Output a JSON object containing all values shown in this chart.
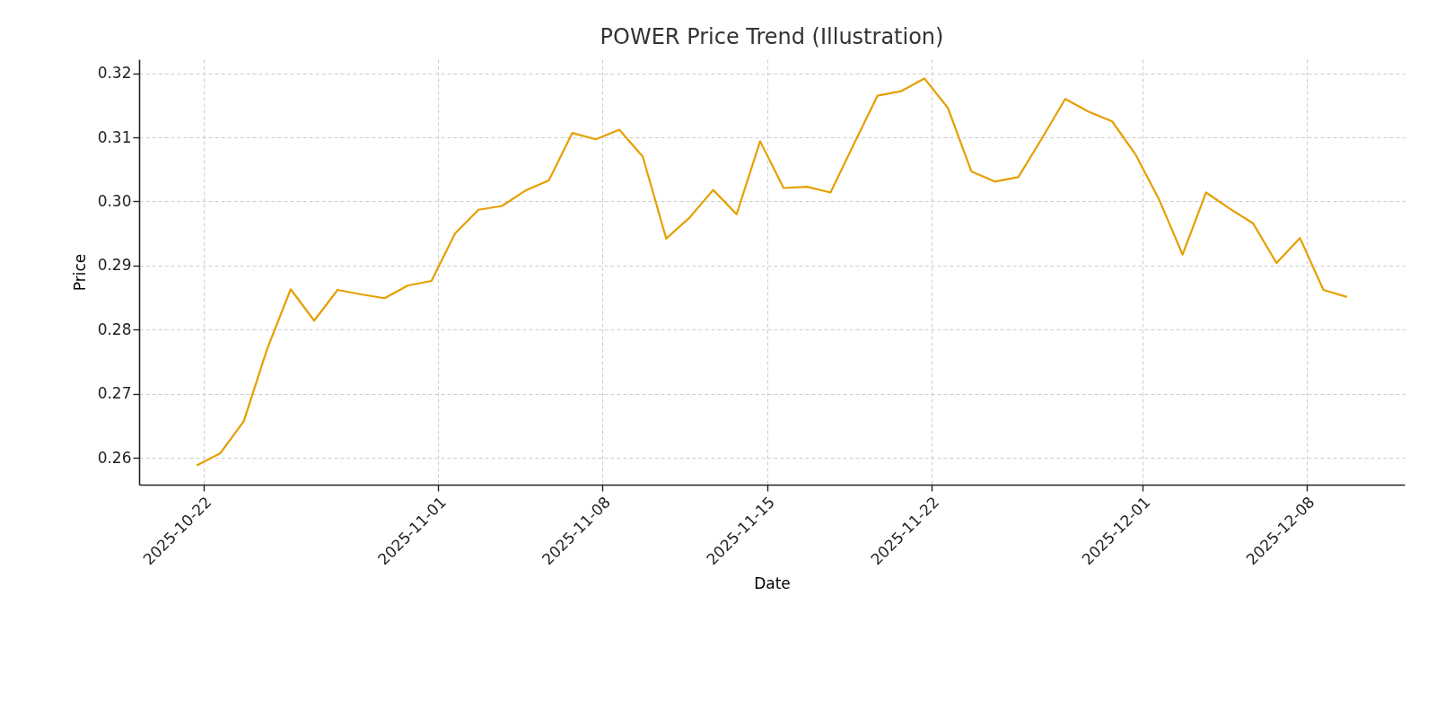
{
  "chart_data": {
    "type": "line",
    "title": "POWER Price Trend (Illustration)",
    "xlabel": "Date",
    "ylabel": "Price",
    "x": [
      "2025-10-21T17:00",
      "2025-10-22T17:00",
      "2025-10-23T17:00",
      "2025-10-24T17:00",
      "2025-10-25T17:00",
      "2025-10-26T17:00",
      "2025-10-27T17:00",
      "2025-10-28T17:00",
      "2025-10-29T17:00",
      "2025-10-30T17:00",
      "2025-10-31T17:00",
      "2025-11-01T17:00",
      "2025-11-02T17:00",
      "2025-11-03T17:00",
      "2025-11-04T17:00",
      "2025-11-05T17:00",
      "2025-11-06T17:00",
      "2025-11-07T17:00",
      "2025-11-08T17:00",
      "2025-11-09T17:00",
      "2025-11-10T17:00",
      "2025-11-11T17:00",
      "2025-11-12T17:00",
      "2025-11-13T17:00",
      "2025-11-14T17:00",
      "2025-11-15T17:00",
      "2025-11-16T17:00",
      "2025-11-17T17:00",
      "2025-11-18T17:00",
      "2025-11-19T17:00",
      "2025-11-20T17:00",
      "2025-11-21T17:00",
      "2025-11-22T17:00",
      "2025-11-23T17:00",
      "2025-11-24T17:00",
      "2025-11-25T17:00",
      "2025-11-26T17:00",
      "2025-11-27T17:00",
      "2025-11-28T17:00",
      "2025-11-29T17:00",
      "2025-11-30T17:00",
      "2025-12-01T17:00",
      "2025-12-02T17:00",
      "2025-12-03T17:00",
      "2025-12-04T17:00",
      "2025-12-05T17:00",
      "2025-12-06T17:00",
      "2025-12-07T17:00",
      "2025-12-08T17:00",
      "2025-12-09T17:00"
    ],
    "series": [
      {
        "color": "#e69f00",
        "values": [
          0.2588,
          0.2607,
          0.2657,
          0.277,
          0.2863,
          0.2814,
          0.2862,
          0.2855,
          0.2849,
          0.2869,
          0.2876,
          0.295,
          0.2987,
          0.2993,
          0.3017,
          0.3033,
          0.3107,
          0.3097,
          0.3112,
          0.307,
          0.2942,
          0.2975,
          0.3018,
          0.298,
          0.3094,
          0.3021,
          0.3023,
          0.3014,
          0.309,
          0.3165,
          0.3172,
          0.3192,
          0.3146,
          0.3047,
          0.3031,
          0.3038,
          0.3098,
          0.316,
          0.314,
          0.3125,
          0.3073,
          0.3003,
          0.2917,
          0.3014,
          0.2989,
          0.2966,
          0.2904,
          0.2943,
          0.2862,
          0.2851
        ]
      }
    ],
    "xlim": [
      "2025-10-19T06:00",
      "2025-12-12T04:00"
    ],
    "xticks": [
      "2025-10-22",
      "2025-11-01",
      "2025-11-08",
      "2025-11-15",
      "2025-11-22",
      "2025-12-01",
      "2025-12-08"
    ],
    "ylim": [
      0.2558,
      0.3222
    ],
    "yticks": [
      {
        "value": 0.26,
        "label": "0.26"
      },
      {
        "value": 0.27,
        "label": "0.27"
      },
      {
        "value": 0.28,
        "label": "0.28"
      },
      {
        "value": 0.29,
        "label": "0.29"
      },
      {
        "value": 0.3,
        "label": "0.30"
      },
      {
        "value": 0.31,
        "label": "0.31"
      },
      {
        "value": 0.32,
        "label": "0.32"
      }
    ],
    "grid": true,
    "line_style": "solid",
    "marker": "none"
  }
}
